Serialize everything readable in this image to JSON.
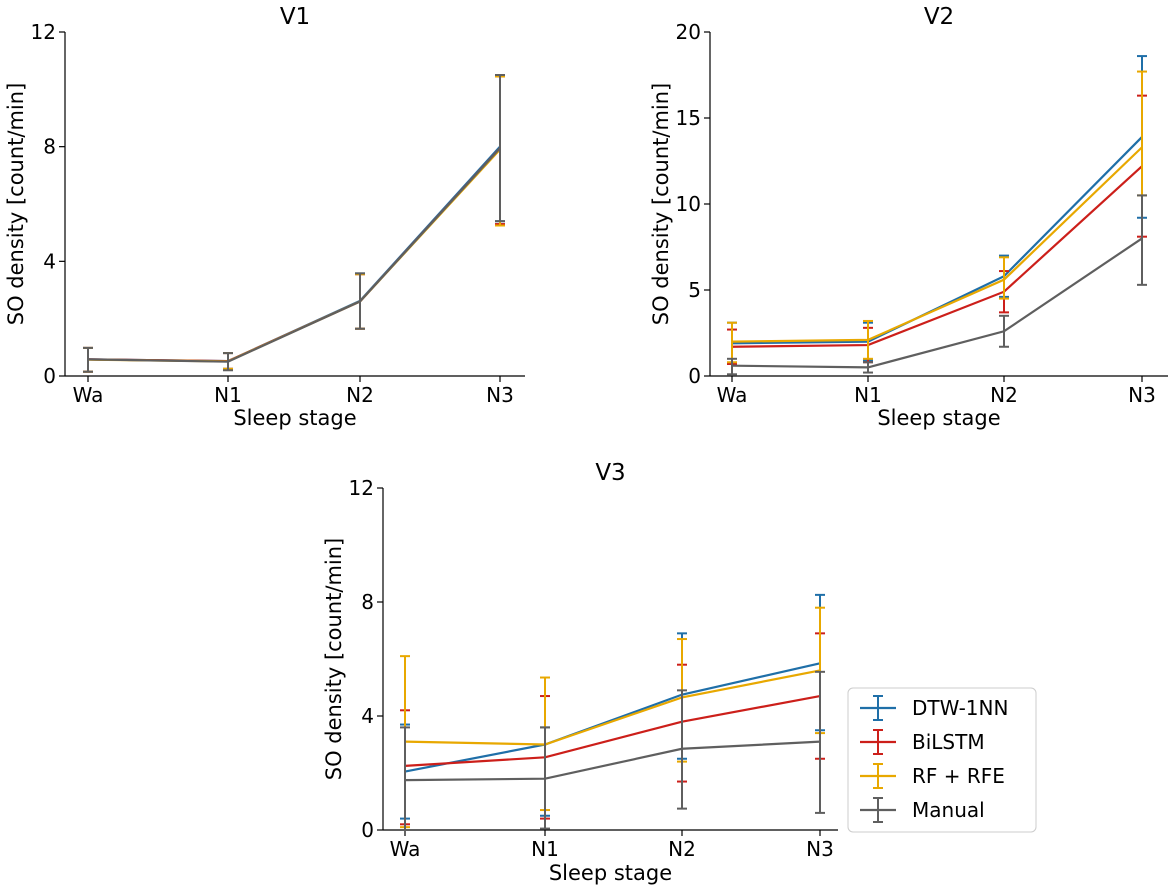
{
  "chart_data": [
    {
      "type": "line",
      "title": "V1",
      "xlabel": "Sleep stage",
      "ylabel": "SO density [count/min]",
      "categories": [
        "Wa",
        "N1",
        "N2",
        "N3"
      ],
      "ylim": [
        0,
        12
      ],
      "yticks": [
        "0",
        "4",
        "8",
        "12"
      ],
      "series": [
        {
          "name": "DTW-1NN",
          "color": "#1f6fa8",
          "values": [
            0.58,
            0.52,
            2.62,
            8.0
          ],
          "err_low": [
            0.15,
            0.25,
            1.65,
            5.4
          ],
          "err_high": [
            0.98,
            0.8,
            3.58,
            10.5
          ]
        },
        {
          "name": "BiLSTM",
          "color": "#cc1f1a",
          "values": [
            0.58,
            0.52,
            2.6,
            7.95
          ],
          "err_low": [
            0.15,
            0.25,
            1.65,
            5.3
          ],
          "err_high": [
            0.98,
            0.8,
            3.55,
            10.45
          ]
        },
        {
          "name": "RF + RFE",
          "color": "#e8a800",
          "values": [
            0.57,
            0.51,
            2.6,
            7.9
          ],
          "err_low": [
            0.15,
            0.25,
            1.65,
            5.25
          ],
          "err_high": [
            0.98,
            0.8,
            3.55,
            10.45
          ]
        },
        {
          "name": "Manual",
          "color": "#5f5f5f",
          "values": [
            0.58,
            0.5,
            2.6,
            7.95
          ],
          "err_low": [
            0.15,
            0.2,
            1.65,
            5.4
          ],
          "err_high": [
            0.98,
            0.8,
            3.58,
            10.5
          ]
        }
      ]
    },
    {
      "type": "line",
      "title": "V2",
      "xlabel": "Sleep stage",
      "ylabel": "SO density [count/min]",
      "categories": [
        "Wa",
        "N1",
        "N2",
        "N3"
      ],
      "ylim": [
        0,
        20
      ],
      "yticks": [
        "0",
        "5",
        "10",
        "15",
        "20"
      ],
      "series": [
        {
          "name": "DTW-1NN",
          "color": "#1f6fa8",
          "values": [
            1.9,
            2.0,
            5.8,
            13.9
          ],
          "err_low": [
            0.7,
            0.9,
            4.6,
            9.2
          ],
          "err_high": [
            3.1,
            3.1,
            7.0,
            18.6
          ]
        },
        {
          "name": "BiLSTM",
          "color": "#cc1f1a",
          "values": [
            1.7,
            1.8,
            4.9,
            12.2
          ],
          "err_low": [
            0.7,
            0.8,
            3.7,
            8.1
          ],
          "err_high": [
            2.7,
            2.8,
            6.1,
            16.3
          ]
        },
        {
          "name": "RF + RFE",
          "color": "#e8a800",
          "values": [
            2.0,
            2.1,
            5.6,
            13.3
          ],
          "err_low": [
            0.8,
            1.0,
            4.5,
            10.5
          ],
          "err_high": [
            3.1,
            3.2,
            6.9,
            17.7
          ]
        },
        {
          "name": "Manual",
          "color": "#5f5f5f",
          "values": [
            0.6,
            0.5,
            2.6,
            8.0
          ],
          "err_low": [
            0.1,
            0.2,
            1.7,
            5.3
          ],
          "err_high": [
            1.0,
            0.8,
            3.5,
            10.5
          ]
        }
      ]
    },
    {
      "type": "line",
      "title": "V3",
      "xlabel": "Sleep stage",
      "ylabel": "SO density [count/min]",
      "categories": [
        "Wa",
        "N1",
        "N2",
        "N3"
      ],
      "ylim": [
        0,
        12
      ],
      "yticks": [
        "0",
        "4",
        "8",
        "12"
      ],
      "legend_position": "lower-right",
      "series": [
        {
          "name": "DTW-1NN",
          "color": "#1f6fa8",
          "values": [
            2.05,
            3.0,
            4.75,
            5.85
          ],
          "err_low": [
            0.4,
            0.5,
            2.5,
            3.5
          ],
          "err_high": [
            3.7,
            3.6,
            6.9,
            8.25
          ]
        },
        {
          "name": "BiLSTM",
          "color": "#cc1f1a",
          "values": [
            2.25,
            2.55,
            3.8,
            4.7
          ],
          "err_low": [
            0.2,
            0.4,
            1.7,
            2.5
          ],
          "err_high": [
            4.2,
            4.7,
            5.8,
            6.9
          ]
        },
        {
          "name": "RF + RFE",
          "color": "#e8a800",
          "values": [
            3.1,
            3.0,
            4.65,
            5.6
          ],
          "err_low": [
            0.1,
            0.7,
            2.4,
            3.4
          ],
          "err_high": [
            6.1,
            5.35,
            6.7,
            7.8
          ]
        },
        {
          "name": "Manual",
          "color": "#5f5f5f",
          "values": [
            1.75,
            1.8,
            2.85,
            3.1
          ],
          "err_low": [
            0.0,
            0.05,
            0.75,
            0.6
          ],
          "err_high": [
            3.6,
            3.6,
            4.9,
            5.55
          ]
        }
      ]
    }
  ]
}
